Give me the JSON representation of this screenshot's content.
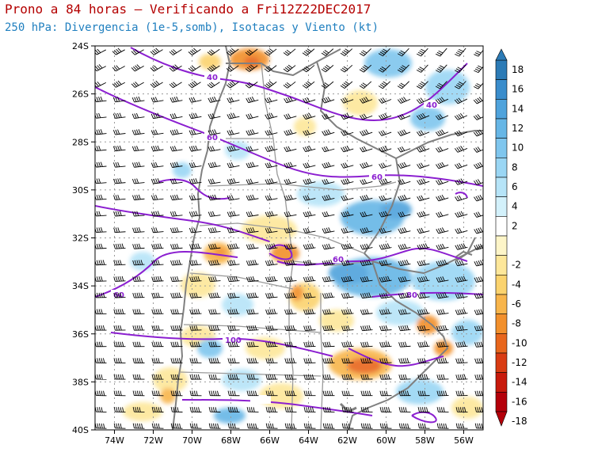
{
  "title": "Prono a 84 horas — Verificando a Fri12Z22DEC2017",
  "subtitle": "250 hPa: Divergencia (1e-5,somb), Isotacas y Viento (kt)",
  "lat_labels": [
    "24S",
    "26S",
    "28S",
    "30S",
    "32S",
    "34S",
    "36S",
    "38S",
    "40S"
  ],
  "lon_labels": [
    "74W",
    "72W",
    "70W",
    "68W",
    "66W",
    "64W",
    "62W",
    "60W",
    "58W",
    "56W"
  ],
  "colorbar": {
    "labels": [
      "18",
      "16",
      "14",
      "12",
      "10",
      "8",
      "6",
      "4",
      "2",
      "-2",
      "-4",
      "-6",
      "-8",
      "-10",
      "-12",
      "-14",
      "-16",
      "-18"
    ],
    "colors": [
      "#2c7bb6",
      "#3a8dcc",
      "#4fa3dc",
      "#66b6e6",
      "#7fc6ee",
      "#9ad6f4",
      "#b6e4f8",
      "#d3f1fb",
      "#ffffff",
      "#fdf5c8",
      "#fde79a",
      "#fbd36e",
      "#f8b54b",
      "#f2902c",
      "#e8661c",
      "#d93c13",
      "#c81a0c",
      "#b4000a"
    ]
  },
  "isotach_labels": [
    "40",
    "40",
    "60",
    "60",
    "60",
    "60",
    "80",
    "100"
  ],
  "map_colors": {
    "border": "#808080",
    "isotach": "#8b1fd0",
    "barb": "#000000",
    "grid": "#9a9a9a"
  }
}
